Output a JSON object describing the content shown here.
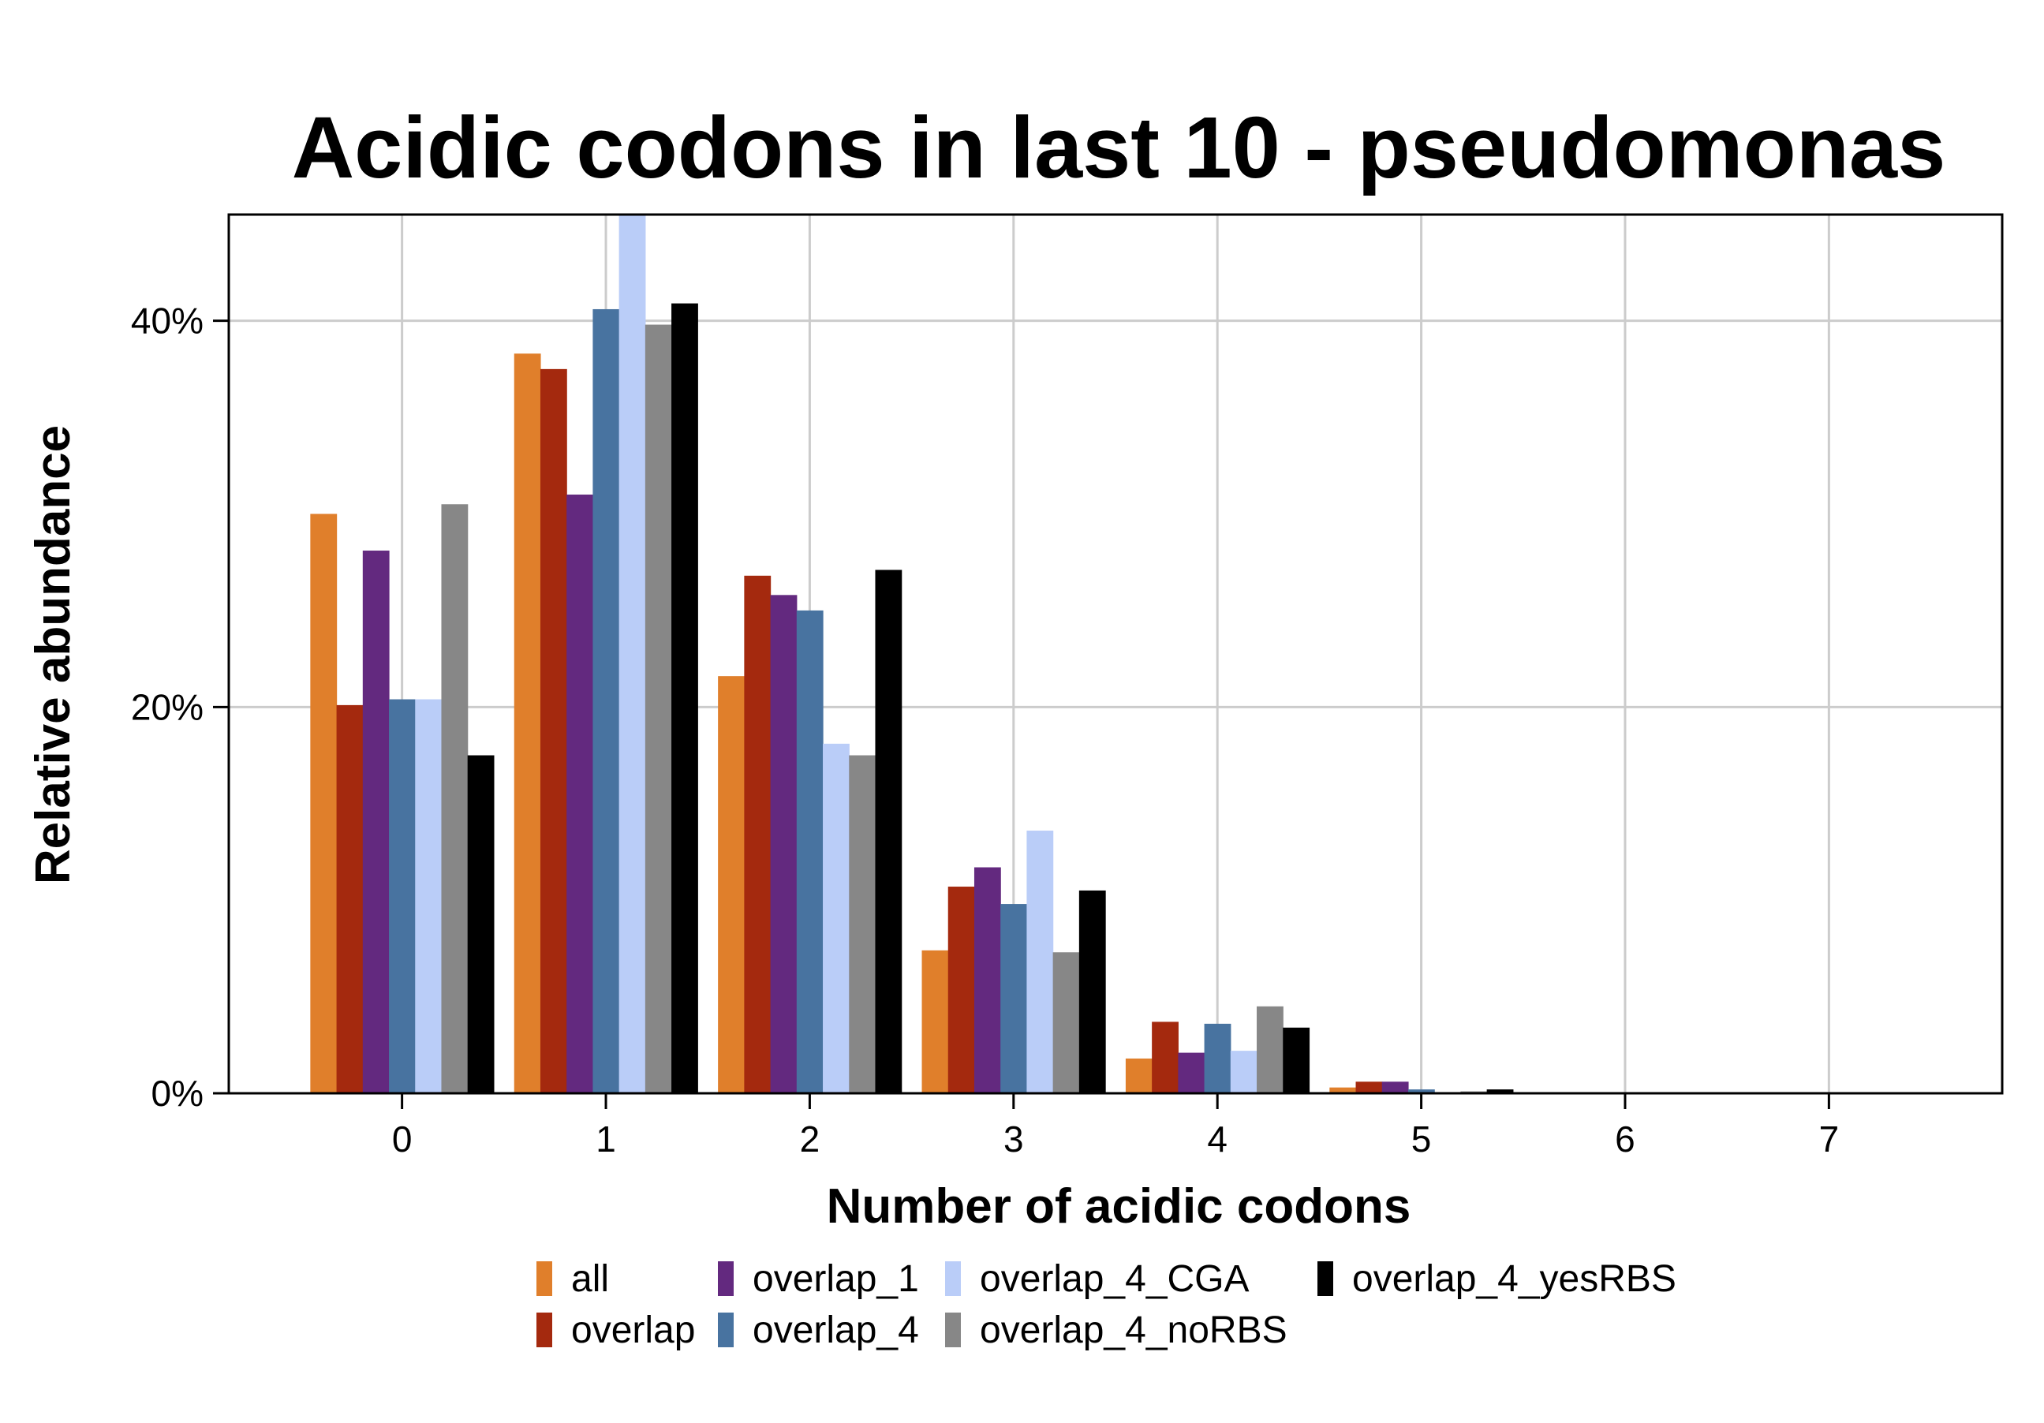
{
  "chart_data": {
    "type": "bar",
    "title": "Acidic codons in last 10 - pseudomonas",
    "xlabel": "Number of acidic codons",
    "ylabel": "Relative abundance",
    "categories": [
      "0",
      "1",
      "2",
      "3",
      "4",
      "5",
      "6",
      "7"
    ],
    "ylim": [
      0,
      45.5
    ],
    "yticks": [
      {
        "value": 0,
        "label": "0%"
      },
      {
        "value": 20,
        "label": "20%"
      },
      {
        "value": 40,
        "label": "40%"
      }
    ],
    "grid": true,
    "legend_position": "bottom",
    "series": [
      {
        "name": "all",
        "color": "#E07F2B",
        "values": [
          30.0,
          38.3,
          21.6,
          7.4,
          1.8,
          0.3,
          0.05,
          0.0
        ]
      },
      {
        "name": "overlap",
        "color": "#A4290E",
        "values": [
          20.1,
          37.5,
          26.8,
          10.7,
          3.7,
          0.6,
          0.05,
          0.0
        ]
      },
      {
        "name": "overlap_1",
        "color": "#63297F",
        "values": [
          28.1,
          31.0,
          25.8,
          11.7,
          2.1,
          0.6,
          0.05,
          0.0
        ]
      },
      {
        "name": "overlap_4",
        "color": "#4873A0",
        "values": [
          20.4,
          40.6,
          25.0,
          9.8,
          3.6,
          0.2,
          0.0,
          0.0
        ]
      },
      {
        "name": "overlap_4_CGA",
        "color": "#BACDF8",
        "values": [
          20.4,
          45.5,
          18.1,
          13.6,
          2.2,
          0.05,
          0.0,
          0.0
        ]
      },
      {
        "name": "overlap_4_noRBS",
        "color": "#878787",
        "values": [
          30.5,
          39.8,
          17.5,
          7.3,
          4.5,
          0.1,
          0.05,
          0.0
        ]
      },
      {
        "name": "overlap_4_yesRBS",
        "color": "#000000",
        "values": [
          17.5,
          40.9,
          27.1,
          10.5,
          3.4,
          0.2,
          0.05,
          0.0
        ]
      }
    ]
  }
}
